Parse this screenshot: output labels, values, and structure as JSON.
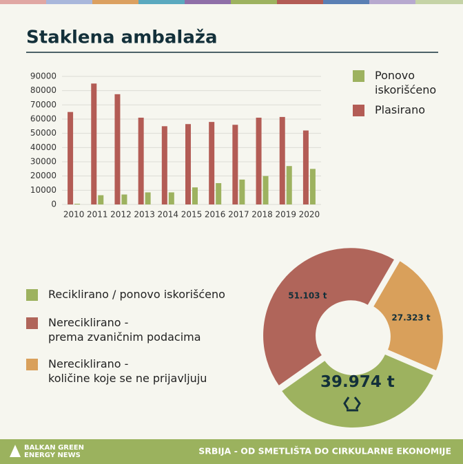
{
  "header": {
    "title": "Staklena ambalaža"
  },
  "chart_data": [
    {
      "type": "bar",
      "categories": [
        "2010",
        "2011",
        "2012",
        "2013",
        "2014",
        "2015",
        "2016",
        "2017",
        "2018",
        "2019",
        "2020"
      ],
      "series": [
        {
          "name": "Ponovo iskorišćeno",
          "color": "#9db25f",
          "values": [
            500,
            6500,
            7000,
            8500,
            8500,
            12000,
            15000,
            17500,
            20000,
            27000,
            25000
          ]
        },
        {
          "name": "Plasirano",
          "color": "#b35c55",
          "values": [
            65000,
            85000,
            77500,
            61000,
            55000,
            56500,
            58000,
            56000,
            61000,
            61500,
            52000
          ]
        }
      ],
      "ylim": [
        0,
        90000
      ],
      "yticks": [
        0,
        10000,
        20000,
        30000,
        40000,
        50000,
        60000,
        70000,
        80000,
        90000
      ],
      "grid": true
    },
    {
      "type": "pie",
      "categories": [
        "Reciklirano / ponovo iskorišćeno",
        "Nereciklirano -\nprema zvaničnim podacima",
        "Nereciklirano -\nkoličine koje se ne prijavljuju"
      ],
      "values": [
        39974,
        51103,
        27323
      ],
      "value_labels": [
        "39.974 t",
        "51.103 t",
        "27.323 t"
      ],
      "colors": [
        "#9db25f",
        "#b0655a",
        "#d9a05b"
      ]
    }
  ],
  "footer": {
    "logo": [
      "BALKAN GREEN",
      "ENERGY NEWS"
    ],
    "text": "SRBIJA - OD SMETLIŠTA DO CIRKULARNE EKONOMIJE"
  }
}
